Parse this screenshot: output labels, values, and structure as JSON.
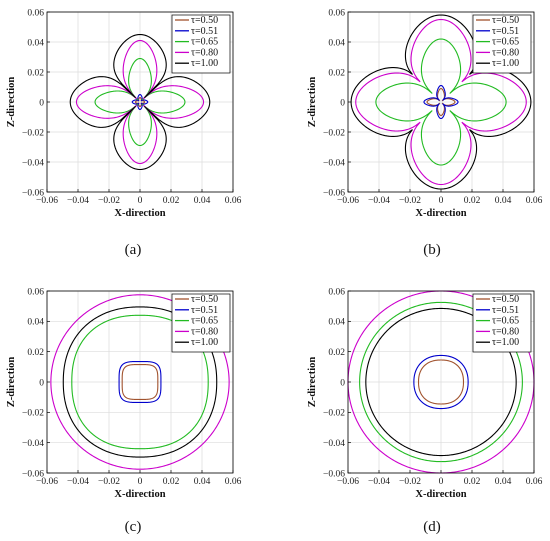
{
  "chart_data": [
    {
      "type": "line",
      "panel": "(a)",
      "xlabel": "X-direction",
      "ylabel": "Z-direction",
      "xlim": [
        -0.06,
        0.06
      ],
      "ylim": [
        -0.06,
        0.06
      ],
      "ticks": [
        "−0.06",
        "−0.04",
        "−0.02",
        "0",
        "0.02",
        "0.04",
        "0.06"
      ],
      "tick_values": [
        -0.06,
        -0.04,
        -0.02,
        0,
        0.02,
        0.04,
        0.06
      ],
      "grid": true,
      "legend_position": "top-right",
      "series": [
        {
          "name": "τ=0.50",
          "shape": "flower",
          "R": 0.003,
          "inner": 0.0008,
          "lobe_width": 0.22,
          "lobe_exp": 2,
          "color": "#a0522d"
        },
        {
          "name": "τ=0.51",
          "shape": "flower",
          "R": 0.005,
          "inner": 0.001,
          "lobe_width": 0.22,
          "lobe_exp": 2,
          "color": "#0000cc"
        },
        {
          "name": "τ=0.65",
          "shape": "flower",
          "R": 0.029,
          "inner": 0.002,
          "lobe_width": 0.25,
          "lobe_exp": 2,
          "color": "#22bb22"
        },
        {
          "name": "τ=0.80",
          "shape": "flower",
          "R": 0.041,
          "inner": 0.003,
          "lobe_width": 0.3,
          "lobe_exp": 2,
          "color": "#cc00cc"
        },
        {
          "name": "τ=1.00",
          "shape": "flower",
          "R": 0.045,
          "inner": 0.004,
          "lobe_width": 0.33,
          "lobe_exp": 4,
          "color": "#000000"
        }
      ]
    },
    {
      "type": "line",
      "panel": "(b)",
      "xlabel": "X-direction",
      "ylabel": "Z-direction",
      "xlim": [
        -0.06,
        0.06
      ],
      "ylim": [
        -0.06,
        0.06
      ],
      "ticks": [
        "−0.06",
        "−0.04",
        "−0.02",
        "0",
        "0.02",
        "0.04",
        "0.06"
      ],
      "tick_values": [
        -0.06,
        -0.04,
        -0.02,
        0,
        0.02,
        0.04,
        0.06
      ],
      "grid": true,
      "legend_position": "top-right",
      "series": [
        {
          "name": "τ=0.50",
          "shape": "flower",
          "R": 0.009,
          "inner": 0.001,
          "lobe_width": 0.18,
          "lobe_exp": 2,
          "color": "#a0522d"
        },
        {
          "name": "τ=0.51",
          "shape": "flower",
          "R": 0.011,
          "inner": 0.0015,
          "lobe_width": 0.18,
          "lobe_exp": 2,
          "color": "#0000cc"
        },
        {
          "name": "τ=0.65",
          "shape": "flower",
          "R": 0.042,
          "inner": 0.008,
          "lobe_width": 0.35,
          "lobe_exp": 2,
          "color": "#22bb22"
        },
        {
          "name": "τ=0.80",
          "shape": "flower",
          "R": 0.055,
          "inner": 0.019,
          "lobe_width": 0.4,
          "lobe_exp": 2,
          "color": "#cc00cc"
        },
        {
          "name": "τ=1.00",
          "shape": "flower",
          "R": 0.058,
          "inner": 0.026,
          "lobe_width": 0.5,
          "lobe_exp": 2,
          "color": "#000000"
        }
      ]
    },
    {
      "type": "line",
      "panel": "(c)",
      "xlabel": "X-direction",
      "ylabel": "Z-direction",
      "xlim": [
        -0.06,
        0.06
      ],
      "ylim": [
        -0.06,
        0.06
      ],
      "ticks": [
        "−0.06",
        "−0.04",
        "−0.02",
        "0",
        "0.02",
        "0.04",
        "0.06"
      ],
      "tick_values": [
        -0.06,
        -0.04,
        -0.02,
        0,
        0.02,
        0.04,
        0.06
      ],
      "grid": true,
      "legend_position": "top-right",
      "series": [
        {
          "name": "τ=0.50",
          "shape": "squircle",
          "R": 0.0115,
          "n": 4,
          "color": "#a0522d"
        },
        {
          "name": "τ=0.51",
          "shape": "squircle",
          "R": 0.0135,
          "n": 4,
          "color": "#0000cc"
        },
        {
          "name": "τ=0.65",
          "shape": "squircle",
          "R": 0.044,
          "n": 2.3,
          "color": "#22bb22"
        },
        {
          "name": "τ=0.80",
          "shape": "squircle",
          "R": 0.0575,
          "n": 2,
          "color": "#cc00cc"
        },
        {
          "name": "τ=1.00",
          "shape": "squircle",
          "R": 0.0495,
          "n": 2.2,
          "color": "#000000"
        }
      ]
    },
    {
      "type": "line",
      "panel": "(d)",
      "xlabel": "X-direction",
      "ylabel": "Z-direction",
      "xlim": [
        -0.06,
        0.06
      ],
      "ylim": [
        -0.06,
        0.06
      ],
      "ticks": [
        "−0.06",
        "−0.04",
        "−0.02",
        "0",
        "0.02",
        "0.04",
        "0.06"
      ],
      "tick_values": [
        -0.06,
        -0.04,
        -0.02,
        0,
        0.02,
        0.04,
        0.06
      ],
      "grid": true,
      "legend_position": "top-right",
      "series": [
        {
          "name": "τ=0.50",
          "shape": "squircle",
          "R": 0.0145,
          "n": 2.3,
          "color": "#a0522d"
        },
        {
          "name": "τ=0.51",
          "shape": "squircle",
          "R": 0.0175,
          "n": 2.2,
          "color": "#0000cc"
        },
        {
          "name": "τ=0.65",
          "shape": "squircle",
          "R": 0.0525,
          "n": 2,
          "color": "#22bb22"
        },
        {
          "name": "τ=0.80",
          "shape": "squircle",
          "R": 0.06,
          "n": 2,
          "color": "#cc00cc"
        },
        {
          "name": "τ=1.00",
          "shape": "squircle",
          "R": 0.0485,
          "n": 2,
          "color": "#000000"
        }
      ]
    }
  ]
}
